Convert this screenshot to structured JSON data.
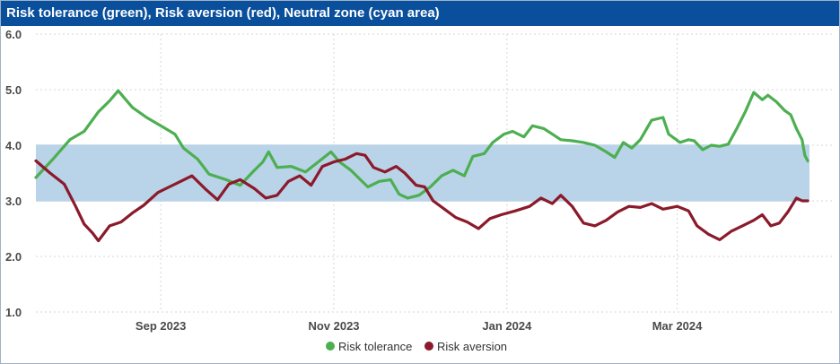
{
  "title": "Risk tolerance (green), Risk aversion (red), Neutral zone (cyan area)",
  "colors": {
    "title_bg": "#0a4f9c",
    "tolerance": "#4caf50",
    "aversion": "#8b1a2b",
    "neutral_zone": "#b9d3e8",
    "grid": "#d0d0d0"
  },
  "chart_data": {
    "type": "line",
    "title": "Risk tolerance (green), Risk aversion (red), Neutral zone (cyan area)",
    "xlabel": "",
    "ylabel": "",
    "ylim": [
      1.0,
      6.0
    ],
    "y_ticks": [
      "1.0",
      "2.0",
      "3.0",
      "4.0",
      "5.0",
      "6.0"
    ],
    "x_ticks": [
      "Sep 2023",
      "Nov 2023",
      "Jan 2024",
      "Mar 2024"
    ],
    "x_tick_dates": [
      "2023-09-01",
      "2023-11-01",
      "2024-01-01",
      "2024-03-01"
    ],
    "x_range": [
      "2023-07-19",
      "2024-04-16"
    ],
    "grid": true,
    "legend_position": "bottom-center",
    "neutral_zone": [
      3.0,
      4.0
    ],
    "series": [
      {
        "name": "Risk tolerance",
        "color": "#4caf50",
        "points": [
          [
            "2023-07-19",
            3.42
          ],
          [
            "2023-07-25",
            3.75
          ],
          [
            "2023-07-31",
            4.1
          ],
          [
            "2023-08-05",
            4.25
          ],
          [
            "2023-08-10",
            4.6
          ],
          [
            "2023-08-14",
            4.8
          ],
          [
            "2023-08-17",
            4.98
          ],
          [
            "2023-08-22",
            4.68
          ],
          [
            "2023-08-27",
            4.5
          ],
          [
            "2023-09-01",
            4.35
          ],
          [
            "2023-09-06",
            4.2
          ],
          [
            "2023-09-09",
            3.95
          ],
          [
            "2023-09-14",
            3.75
          ],
          [
            "2023-09-18",
            3.48
          ],
          [
            "2023-09-24",
            3.38
          ],
          [
            "2023-09-29",
            3.28
          ],
          [
            "2023-10-04",
            3.55
          ],
          [
            "2023-10-07",
            3.7
          ],
          [
            "2023-10-09",
            3.88
          ],
          [
            "2023-10-12",
            3.6
          ],
          [
            "2023-10-17",
            3.62
          ],
          [
            "2023-10-22",
            3.52
          ],
          [
            "2023-10-27",
            3.72
          ],
          [
            "2023-10-31",
            3.88
          ],
          [
            "2023-11-03",
            3.7
          ],
          [
            "2023-11-07",
            3.55
          ],
          [
            "2023-11-10",
            3.4
          ],
          [
            "2023-11-13",
            3.25
          ],
          [
            "2023-11-17",
            3.35
          ],
          [
            "2023-11-21",
            3.38
          ],
          [
            "2023-11-24",
            3.12
          ],
          [
            "2023-11-27",
            3.05
          ],
          [
            "2023-12-01",
            3.1
          ],
          [
            "2023-12-05",
            3.25
          ],
          [
            "2023-12-09",
            3.45
          ],
          [
            "2023-12-13",
            3.55
          ],
          [
            "2023-12-17",
            3.45
          ],
          [
            "2023-12-20",
            3.8
          ],
          [
            "2023-12-24",
            3.85
          ],
          [
            "2023-12-27",
            4.05
          ],
          [
            "2023-12-31",
            4.2
          ],
          [
            "2024-01-03",
            4.25
          ],
          [
            "2024-01-07",
            4.15
          ],
          [
            "2024-01-10",
            4.35
          ],
          [
            "2024-01-14",
            4.3
          ],
          [
            "2024-01-17",
            4.2
          ],
          [
            "2024-01-20",
            4.1
          ],
          [
            "2024-01-24",
            4.08
          ],
          [
            "2024-01-28",
            4.05
          ],
          [
            "2024-02-01",
            4.0
          ],
          [
            "2024-02-05",
            3.88
          ],
          [
            "2024-02-08",
            3.78
          ],
          [
            "2024-02-11",
            4.05
          ],
          [
            "2024-02-14",
            3.95
          ],
          [
            "2024-02-17",
            4.1
          ],
          [
            "2024-02-21",
            4.45
          ],
          [
            "2024-02-25",
            4.5
          ],
          [
            "2024-02-27",
            4.2
          ],
          [
            "2024-03-02",
            4.05
          ],
          [
            "2024-03-05",
            4.1
          ],
          [
            "2024-03-07",
            4.08
          ],
          [
            "2024-03-10",
            3.92
          ],
          [
            "2024-03-13",
            4.0
          ],
          [
            "2024-03-16",
            3.98
          ],
          [
            "2024-03-19",
            4.02
          ],
          [
            "2024-03-22",
            4.3
          ],
          [
            "2024-03-25",
            4.6
          ],
          [
            "2024-03-28",
            4.95
          ],
          [
            "2024-03-31",
            4.82
          ],
          [
            "2024-04-02",
            4.9
          ],
          [
            "2024-04-05",
            4.78
          ],
          [
            "2024-04-08",
            4.62
          ],
          [
            "2024-04-10",
            4.55
          ],
          [
            "2024-04-12",
            4.3
          ],
          [
            "2024-04-14",
            4.1
          ],
          [
            "2024-04-15",
            3.82
          ],
          [
            "2024-04-16",
            3.72
          ]
        ]
      },
      {
        "name": "Risk aversion",
        "color": "#8b1a2b",
        "points": [
          [
            "2023-07-19",
            3.72
          ],
          [
            "2023-07-24",
            3.5
          ],
          [
            "2023-07-29",
            3.3
          ],
          [
            "2023-08-02",
            2.9
          ],
          [
            "2023-08-05",
            2.58
          ],
          [
            "2023-08-08",
            2.42
          ],
          [
            "2023-08-10",
            2.28
          ],
          [
            "2023-08-14",
            2.55
          ],
          [
            "2023-08-18",
            2.62
          ],
          [
            "2023-08-22",
            2.78
          ],
          [
            "2023-08-26",
            2.92
          ],
          [
            "2023-08-31",
            3.15
          ],
          [
            "2023-09-04",
            3.25
          ],
          [
            "2023-09-08",
            3.35
          ],
          [
            "2023-09-12",
            3.45
          ],
          [
            "2023-09-17",
            3.2
          ],
          [
            "2023-09-21",
            3.02
          ],
          [
            "2023-09-25",
            3.3
          ],
          [
            "2023-09-29",
            3.38
          ],
          [
            "2023-10-04",
            3.22
          ],
          [
            "2023-10-08",
            3.05
          ],
          [
            "2023-10-12",
            3.1
          ],
          [
            "2023-10-16",
            3.35
          ],
          [
            "2023-10-20",
            3.45
          ],
          [
            "2023-10-24",
            3.28
          ],
          [
            "2023-10-28",
            3.62
          ],
          [
            "2023-11-01",
            3.7
          ],
          [
            "2023-11-05",
            3.75
          ],
          [
            "2023-11-09",
            3.85
          ],
          [
            "2023-11-12",
            3.82
          ],
          [
            "2023-11-15",
            3.6
          ],
          [
            "2023-11-19",
            3.52
          ],
          [
            "2023-11-23",
            3.62
          ],
          [
            "2023-11-26",
            3.5
          ],
          [
            "2023-11-30",
            3.28
          ],
          [
            "2023-12-03",
            3.25
          ],
          [
            "2023-12-06",
            3.0
          ],
          [
            "2023-12-10",
            2.85
          ],
          [
            "2023-12-14",
            2.7
          ],
          [
            "2023-12-18",
            2.62
          ],
          [
            "2023-12-22",
            2.5
          ],
          [
            "2023-12-26",
            2.68
          ],
          [
            "2023-12-30",
            2.75
          ],
          [
            "2024-01-04",
            2.82
          ],
          [
            "2024-01-09",
            2.9
          ],
          [
            "2024-01-13",
            3.05
          ],
          [
            "2024-01-17",
            2.95
          ],
          [
            "2024-01-20",
            3.1
          ],
          [
            "2024-01-24",
            2.9
          ],
          [
            "2024-01-28",
            2.6
          ],
          [
            "2024-02-01",
            2.55
          ],
          [
            "2024-02-05",
            2.65
          ],
          [
            "2024-02-09",
            2.8
          ],
          [
            "2024-02-13",
            2.9
          ],
          [
            "2024-02-17",
            2.88
          ],
          [
            "2024-02-21",
            2.95
          ],
          [
            "2024-02-25",
            2.85
          ],
          [
            "2024-03-01",
            2.9
          ],
          [
            "2024-03-05",
            2.82
          ],
          [
            "2024-03-08",
            2.55
          ],
          [
            "2024-03-12",
            2.4
          ],
          [
            "2024-03-16",
            2.3
          ],
          [
            "2024-03-20",
            2.45
          ],
          [
            "2024-03-24",
            2.55
          ],
          [
            "2024-03-28",
            2.65
          ],
          [
            "2024-03-31",
            2.75
          ],
          [
            "2024-04-03",
            2.55
          ],
          [
            "2024-04-06",
            2.6
          ],
          [
            "2024-04-09",
            2.8
          ],
          [
            "2024-04-12",
            3.05
          ],
          [
            "2024-04-14",
            3.0
          ],
          [
            "2024-04-16",
            3.0
          ]
        ]
      }
    ]
  },
  "legend": {
    "tolerance_label": "Risk tolerance",
    "aversion_label": "Risk aversion"
  }
}
